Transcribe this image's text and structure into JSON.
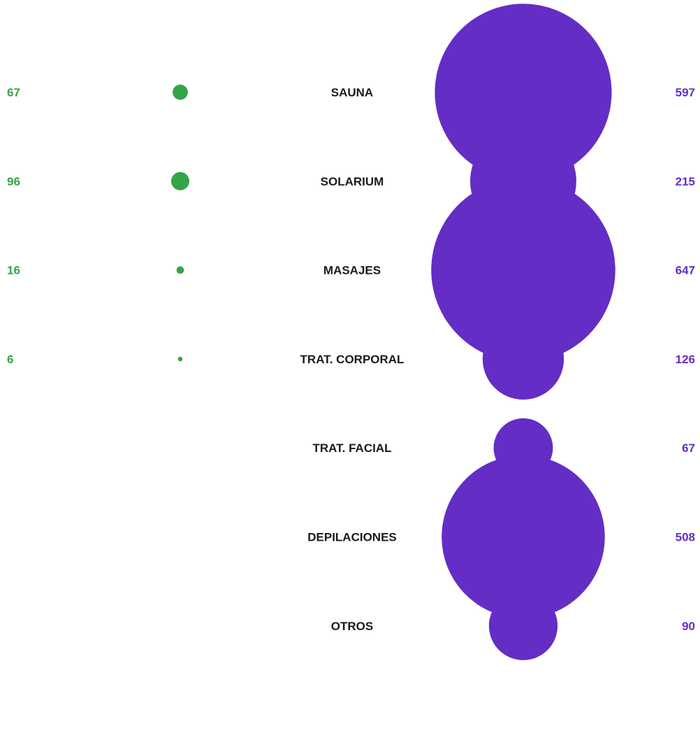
{
  "chart_data": {
    "type": "bubble",
    "categories": [
      "SAUNA",
      "SOLARIUM",
      "MASAJES",
      "TRAT. CORPORAL",
      "TRAT. FACIAL",
      "DEPILACIONES",
      "OTROS"
    ],
    "series": [
      {
        "color": "#34a448",
        "values": [
          67,
          96,
          16,
          6,
          null,
          null,
          null
        ]
      },
      {
        "color": "#642dc5",
        "values": [
          597,
          215,
          647,
          126,
          67,
          508,
          90
        ]
      }
    ],
    "label_color": "#1a1a1a"
  }
}
